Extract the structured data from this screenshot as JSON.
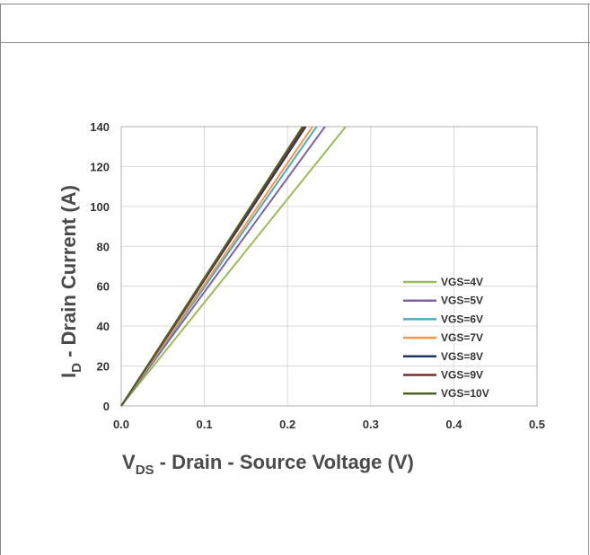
{
  "chart_data": {
    "type": "line",
    "xlabel_main": "V",
    "xlabel_sub": "DS",
    "xlabel_rest": " - Drain -  Source Voltage (V)",
    "ylabel_main": "I",
    "ylabel_sub": "D",
    "ylabel_rest": " - Drain Current (A)",
    "xlim": [
      0,
      0.5
    ],
    "ylim": [
      0,
      140
    ],
    "x_ticks": [
      "0.0",
      "0.1",
      "0.2",
      "0.3",
      "0.4",
      "0.5"
    ],
    "y_ticks": [
      "0",
      "20",
      "40",
      "60",
      "80",
      "100",
      "120",
      "140"
    ],
    "grid": true,
    "legend_position": "bottom-right",
    "series": [
      {
        "name": "VGS=4V",
        "color": "#9bbb59",
        "x": [
          0,
          0.27
        ],
        "y": [
          0,
          140
        ]
      },
      {
        "name": "VGS=5V",
        "color": "#8064a2",
        "x": [
          0,
          0.245
        ],
        "y": [
          0,
          140
        ]
      },
      {
        "name": "VGS=6V",
        "color": "#4bacc6",
        "x": [
          0,
          0.235
        ],
        "y": [
          0,
          140
        ]
      },
      {
        "name": "VGS=7V",
        "color": "#f79646",
        "x": [
          0,
          0.23
        ],
        "y": [
          0,
          140
        ]
      },
      {
        "name": "VGS=8V",
        "color": "#1f3864",
        "x": [
          0,
          0.222
        ],
        "y": [
          0,
          140
        ]
      },
      {
        "name": "VGS=9V",
        "color": "#7b2c2c",
        "x": [
          0,
          0.22
        ],
        "y": [
          0,
          140
        ]
      },
      {
        "name": "VGS=10V",
        "color": "#4f6228",
        "x": [
          0,
          0.218
        ],
        "y": [
          0,
          140
        ]
      }
    ]
  }
}
